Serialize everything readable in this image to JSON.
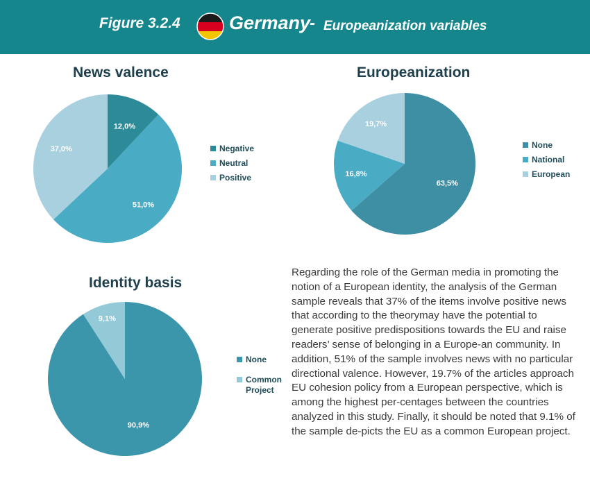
{
  "header": {
    "figure_label": "Figure  3.2.4",
    "country": "Germany",
    "separator": "-",
    "subtitle": "Europeanization variables",
    "flag_icon": "germany-flag-icon",
    "background_color": "#15868b",
    "flag_colors": [
      "#1a1a1a",
      "#d8001f",
      "#f2c500"
    ]
  },
  "chart_data": [
    {
      "type": "pie",
      "title": "News valence",
      "labels": [
        "Negative",
        "Neutral",
        "Positive"
      ],
      "values": [
        12.0,
        51.0,
        37.0
      ],
      "value_labels": [
        "12,0%",
        "51,0%",
        "37,0%"
      ],
      "colors": [
        "#2d8a98",
        "#4aabc4",
        "#a8d0df"
      ],
      "legend_position": "right"
    },
    {
      "type": "pie",
      "title": "Europeanization",
      "labels": [
        "None",
        "National",
        "European"
      ],
      "values": [
        63.5,
        16.8,
        19.7
      ],
      "value_labels": [
        "63,5%",
        "16,8%",
        "19,7%"
      ],
      "colors": [
        "#3e8ea4",
        "#4aabc4",
        "#a8d0df"
      ],
      "legend_position": "right"
    },
    {
      "type": "pie",
      "title": "Identity basis",
      "labels": [
        "None",
        "Common Project"
      ],
      "values": [
        90.9,
        9.1
      ],
      "value_labels": [
        "90,9%",
        "9,1%"
      ],
      "colors": [
        "#3c96ab",
        "#94c9d8"
      ],
      "legend_position": "right"
    }
  ],
  "paragraph": "Regarding the role of the German media in promoting the notion of a European identity, the analysis of the German sample reveals that 37% of the items involve positive news that according to the theorymay have the potential to generate positive predispositions towards the EU and raise readers’ sense of belonging in a Europe-an community. In addition, 51% of the sample involves news with no particular directional valence. However, 19.7% of the articles approach EU cohesion policy from a European perspective, which is among the highest per-centages between the countries analyzed in this study. Finally, it should be noted that 9.1% of the sample de-picts the EU as a common European project."
}
